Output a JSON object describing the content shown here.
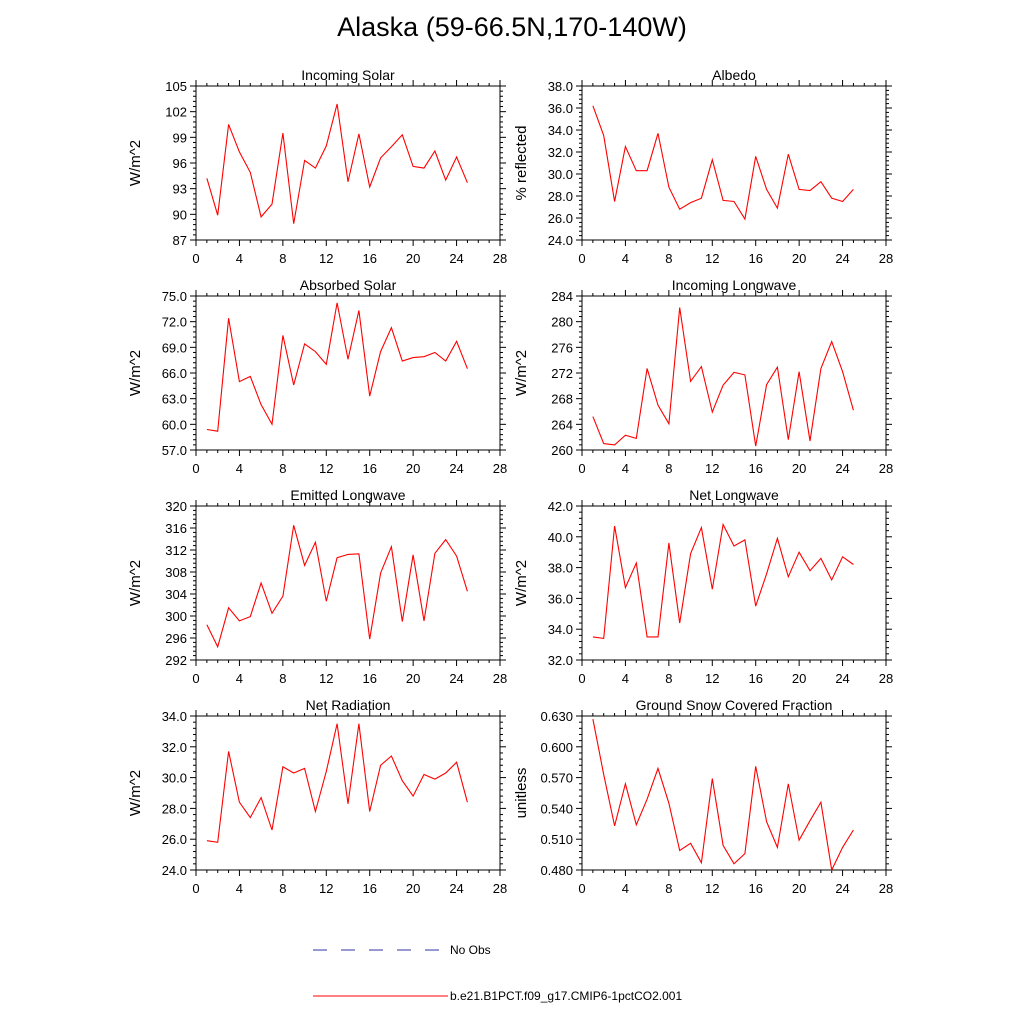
{
  "figure": {
    "title": "Alaska (59-66.5N,170-140W)"
  },
  "legend": {
    "items": [
      {
        "label": "No Obs",
        "color": "#3333aa",
        "dashed": true
      },
      {
        "label": "b.e21.B1PCT.f09_g17.CMIP6-1pctCO2.001",
        "color": "#ff0000",
        "dashed": false
      }
    ]
  },
  "colors": {
    "series": "#ff0000",
    "no_obs": "#3333aa"
  },
  "chart_data": [
    {
      "type": "line",
      "title": "Incoming Solar",
      "xlabel": "",
      "ylabel": "W/m^2",
      "xlim": [
        0,
        28
      ],
      "ylim": [
        87,
        105
      ],
      "xticks": [
        0,
        4,
        8,
        12,
        16,
        20,
        24,
        28
      ],
      "yticks": [
        "87",
        "90",
        "93",
        "96",
        "99",
        "102",
        "105"
      ],
      "grid": false,
      "x": [
        1,
        2,
        3,
        4,
        5,
        6,
        7,
        8,
        9,
        10,
        11,
        12,
        13,
        14,
        15,
        16,
        17,
        18,
        19,
        20,
        21,
        22,
        23,
        24,
        25
      ],
      "series": [
        {
          "name": "b.e21.B1PCT.f09_g17.CMIP6-1pctCO2.001",
          "values": [
            94.2,
            89.9,
            100.5,
            97.3,
            94.9,
            89.7,
            91.2,
            99.5,
            88.9,
            96.3,
            95.4,
            98.0,
            102.9,
            93.8,
            99.4,
            93.2,
            96.6,
            97.9,
            99.3,
            95.6,
            95.4,
            97.4,
            94.0,
            96.7,
            93.7
          ]
        }
      ]
    },
    {
      "type": "line",
      "title": "Albedo",
      "xlabel": "",
      "ylabel": "% reflected",
      "xlim": [
        0,
        28
      ],
      "ylim": [
        24,
        38
      ],
      "xticks": [
        0,
        4,
        8,
        12,
        16,
        20,
        24,
        28
      ],
      "yticks": [
        "24.0",
        "26.0",
        "28.0",
        "30.0",
        "32.0",
        "34.0",
        "36.0",
        "38.0"
      ],
      "grid": false,
      "x": [
        1,
        2,
        3,
        4,
        5,
        6,
        7,
        8,
        9,
        10,
        11,
        12,
        13,
        14,
        15,
        16,
        17,
        18,
        19,
        20,
        21,
        22,
        23,
        24,
        25
      ],
      "series": [
        {
          "name": "b.e21.B1PCT.f09_g17.CMIP6-1pctCO2.001",
          "values": [
            36.2,
            33.5,
            27.5,
            32.5,
            30.3,
            30.3,
            33.7,
            28.8,
            26.8,
            27.4,
            27.8,
            31.3,
            27.6,
            27.5,
            25.9,
            31.6,
            28.6,
            26.9,
            31.8,
            28.6,
            28.5,
            29.3,
            27.8,
            27.5,
            28.6
          ]
        }
      ]
    },
    {
      "type": "line",
      "title": "Absorbed Solar",
      "xlabel": "",
      "ylabel": "W/m^2",
      "xlim": [
        0,
        28
      ],
      "ylim": [
        57,
        75
      ],
      "xticks": [
        0,
        4,
        8,
        12,
        16,
        20,
        24,
        28
      ],
      "yticks": [
        "57.0",
        "60.0",
        "63.0",
        "66.0",
        "69.0",
        "72.0",
        "75.0"
      ],
      "grid": false,
      "x": [
        1,
        2,
        3,
        4,
        5,
        6,
        7,
        8,
        9,
        10,
        11,
        12,
        13,
        14,
        15,
        16,
        17,
        18,
        19,
        20,
        21,
        22,
        23,
        24,
        25
      ],
      "series": [
        {
          "name": "b.e21.B1PCT.f09_g17.CMIP6-1pctCO2.001",
          "values": [
            59.4,
            59.2,
            72.4,
            65.0,
            65.6,
            62.3,
            60.0,
            70.4,
            64.6,
            69.4,
            68.5,
            67.0,
            74.2,
            67.6,
            73.3,
            63.3,
            68.5,
            71.3,
            67.4,
            67.8,
            67.9,
            68.4,
            67.4,
            69.7,
            66.5
          ]
        }
      ]
    },
    {
      "type": "line",
      "title": "Incoming Longwave",
      "xlabel": "",
      "ylabel": "W/m^2",
      "xlim": [
        0,
        28
      ],
      "ylim": [
        260,
        284
      ],
      "xticks": [
        0,
        4,
        8,
        12,
        16,
        20,
        24,
        28
      ],
      "yticks": [
        "260",
        "264",
        "268",
        "272",
        "276",
        "280",
        "284"
      ],
      "grid": false,
      "x": [
        1,
        2,
        3,
        4,
        5,
        6,
        7,
        8,
        9,
        10,
        11,
        12,
        13,
        14,
        15,
        16,
        17,
        18,
        19,
        20,
        21,
        22,
        23,
        24,
        25
      ],
      "series": [
        {
          "name": "b.e21.B1PCT.f09_g17.CMIP6-1pctCO2.001",
          "values": [
            265.2,
            261.0,
            260.8,
            262.3,
            261.8,
            272.7,
            267.0,
            264.1,
            282.2,
            270.7,
            273.0,
            265.9,
            270.1,
            272.1,
            271.7,
            260.6,
            270.2,
            272.9,
            261.6,
            272.2,
            261.4,
            272.7,
            276.9,
            272.2,
            266.2
          ]
        }
      ]
    },
    {
      "type": "line",
      "title": "Emitted Longwave",
      "xlabel": "",
      "ylabel": "W/m^2",
      "xlim": [
        0,
        28
      ],
      "ylim": [
        292,
        320
      ],
      "xticks": [
        0,
        4,
        8,
        12,
        16,
        20,
        24,
        28
      ],
      "yticks": [
        "292",
        "296",
        "300",
        "304",
        "308",
        "312",
        "316",
        "320"
      ],
      "grid": false,
      "x": [
        1,
        2,
        3,
        4,
        5,
        6,
        7,
        8,
        9,
        10,
        11,
        12,
        13,
        14,
        15,
        16,
        17,
        18,
        19,
        20,
        21,
        22,
        23,
        24,
        25
      ],
      "series": [
        {
          "name": "b.e21.B1PCT.f09_g17.CMIP6-1pctCO2.001",
          "values": [
            298.4,
            294.4,
            301.5,
            299.1,
            299.9,
            306.0,
            300.5,
            303.6,
            316.5,
            309.2,
            313.4,
            302.7,
            310.6,
            311.2,
            311.3,
            295.8,
            307.8,
            312.6,
            299.0,
            311.1,
            299.1,
            311.4,
            313.9,
            310.9,
            304.5
          ]
        }
      ]
    },
    {
      "type": "line",
      "title": "Net Longwave",
      "xlabel": "",
      "ylabel": "W/m^2",
      "xlim": [
        0,
        28
      ],
      "ylim": [
        32,
        42
      ],
      "xticks": [
        0,
        4,
        8,
        12,
        16,
        20,
        24,
        28
      ],
      "yticks": [
        "32.0",
        "34.0",
        "36.0",
        "38.0",
        "40.0",
        "42.0"
      ],
      "grid": false,
      "x": [
        1,
        2,
        3,
        4,
        5,
        6,
        7,
        8,
        9,
        10,
        11,
        12,
        13,
        14,
        15,
        16,
        17,
        18,
        19,
        20,
        21,
        22,
        23,
        24,
        25
      ],
      "series": [
        {
          "name": "b.e21.B1PCT.f09_g17.CMIP6-1pctCO2.001",
          "values": [
            33.5,
            33.4,
            40.7,
            36.7,
            38.3,
            33.5,
            33.5,
            39.6,
            34.4,
            38.9,
            40.6,
            36.6,
            40.8,
            39.4,
            39.8,
            35.5,
            37.6,
            39.9,
            37.4,
            39.0,
            37.8,
            38.6,
            37.2,
            38.7,
            38.2
          ]
        }
      ]
    },
    {
      "type": "line",
      "title": "Net Radiation",
      "xlabel": "",
      "ylabel": "W/m^2",
      "xlim": [
        0,
        28
      ],
      "ylim": [
        24,
        34
      ],
      "xticks": [
        0,
        4,
        8,
        12,
        16,
        20,
        24,
        28
      ],
      "yticks": [
        "24.0",
        "26.0",
        "28.0",
        "30.0",
        "32.0",
        "34.0"
      ],
      "grid": false,
      "x": [
        1,
        2,
        3,
        4,
        5,
        6,
        7,
        8,
        9,
        10,
        11,
        12,
        13,
        14,
        15,
        16,
        17,
        18,
        19,
        20,
        21,
        22,
        23,
        24,
        25
      ],
      "series": [
        {
          "name": "b.e21.B1PCT.f09_g17.CMIP6-1pctCO2.001",
          "values": [
            25.9,
            25.8,
            31.7,
            28.4,
            27.4,
            28.7,
            26.6,
            30.7,
            30.3,
            30.6,
            27.8,
            30.4,
            33.5,
            28.3,
            33.5,
            27.8,
            30.8,
            31.4,
            29.8,
            28.8,
            30.2,
            29.9,
            30.3,
            31.0,
            28.4
          ]
        }
      ]
    },
    {
      "type": "line",
      "title": "Ground Snow Covered Fraction",
      "xlabel": "",
      "ylabel": "unitless",
      "xlim": [
        0,
        28
      ],
      "ylim": [
        0.48,
        0.63
      ],
      "xticks": [
        0,
        4,
        8,
        12,
        16,
        20,
        24,
        28
      ],
      "yticks": [
        "0.480",
        "0.510",
        "0.540",
        "0.570",
        "0.600",
        "0.630"
      ],
      "grid": false,
      "x": [
        1,
        2,
        3,
        4,
        5,
        6,
        7,
        8,
        9,
        10,
        11,
        12,
        13,
        14,
        15,
        16,
        17,
        18,
        19,
        20,
        21,
        22,
        23,
        24,
        25
      ],
      "series": [
        {
          "name": "b.e21.B1PCT.f09_g17.CMIP6-1pctCO2.001",
          "values": [
            0.627,
            0.573,
            0.523,
            0.564,
            0.524,
            0.549,
            0.579,
            0.545,
            0.499,
            0.506,
            0.487,
            0.569,
            0.504,
            0.486,
            0.496,
            0.581,
            0.527,
            0.502,
            0.564,
            0.509,
            0.528,
            0.546,
            0.48,
            0.502,
            0.519
          ]
        }
      ]
    }
  ]
}
